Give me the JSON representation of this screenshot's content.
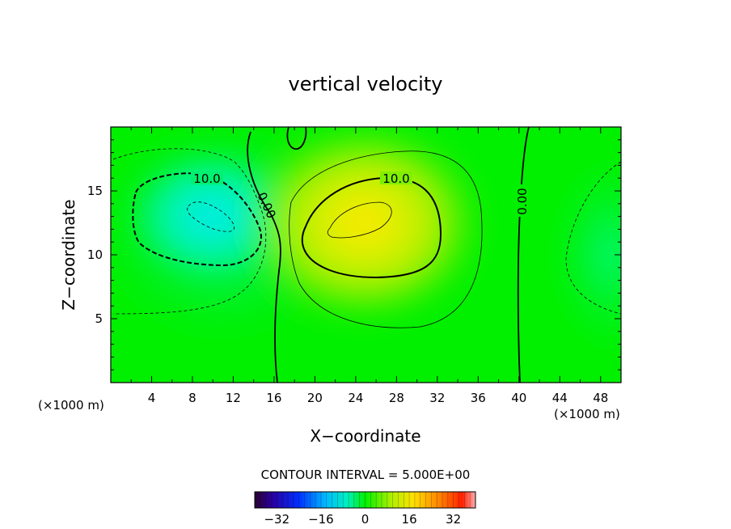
{
  "chart_data": {
    "type": "heatmap",
    "subtype": "filled-contour",
    "title": "vertical velocity",
    "xlabel": "X−coordinate",
    "ylabel": "Z−coordinate",
    "x_unit_left": "(×1000 m)",
    "x_unit_right": "(×1000 m)",
    "xlim": [
      0,
      50
    ],
    "ylim": [
      0,
      20
    ],
    "x_ticks": [
      4,
      8,
      12,
      16,
      20,
      24,
      28,
      32,
      36,
      40,
      44,
      48
    ],
    "x_tick_labels": [
      "4",
      "8",
      "12",
      "16",
      "20",
      "24",
      "28",
      "32",
      "36",
      "40",
      "44",
      "48"
    ],
    "y_ticks": [
      5,
      10,
      15
    ],
    "y_tick_labels": [
      "5",
      "10",
      "15"
    ],
    "contour_interval_text": "CONTOUR INTERVAL = 5.000E+00",
    "contour_labels": [
      "10.0",
      "0.00",
      "10.0",
      "0.00"
    ],
    "colorbar": {
      "range": [
        -40,
        40
      ],
      "ticks": [
        -32,
        -16,
        0,
        16,
        32
      ],
      "tick_labels": [
        "−32",
        "−16",
        "0",
        "16",
        "32"
      ],
      "colormap": "rainbow"
    },
    "features": [
      {
        "kind": "min",
        "x": 10,
        "z": 13,
        "value": -18
      },
      {
        "kind": "max",
        "x": 24,
        "z": 12.5,
        "value": 18
      },
      {
        "kind": "min",
        "x": 49,
        "z": 10,
        "value": -6
      }
    ]
  }
}
